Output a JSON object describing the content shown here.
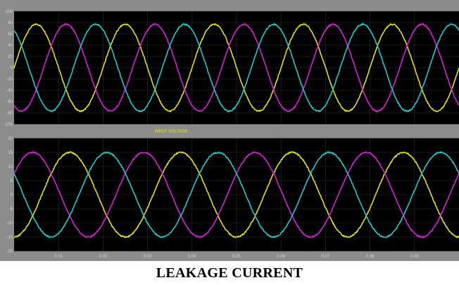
{
  "caption": "LEAKAGE CURRENT",
  "colors": {
    "frame": "#8c8c8c",
    "plot_bg": "#000000",
    "grid": "#2e2e2e",
    "tick_text": "#d8d8d8",
    "title_text": "#e8e800",
    "phase_a": "#e0e010",
    "phase_b": "#d020d0",
    "phase_c": "#20c8c8"
  },
  "chart_data": [
    {
      "type": "line",
      "title": "",
      "xlabel": "",
      "ylabel": "",
      "xlim": [
        0,
        0.1
      ],
      "ylim": [
        -100,
        100
      ],
      "yticks": [
        -100,
        -80,
        -60,
        -40,
        -20,
        0,
        20,
        40,
        60,
        80,
        100
      ],
      "grid": true,
      "series": [
        {
          "color": "#e0e010",
          "amplitude": 77,
          "frequency_hz": 50,
          "phase_deg": 0
        },
        {
          "color": "#d020d0",
          "amplitude": 77,
          "frequency_hz": 50,
          "phase_deg": -120
        },
        {
          "color": "#20c8c8",
          "amplitude": 77,
          "frequency_hz": 50,
          "phase_deg": 120
        }
      ]
    },
    {
      "type": "line",
      "title": "INPUT VOLTAGE",
      "xlabel": "",
      "ylabel": "",
      "xlim": [
        0.0,
        0.1
      ],
      "ylim": [
        -20,
        20
      ],
      "yticks": [
        -20,
        -15,
        -10,
        -5,
        0,
        5,
        10,
        15,
        20
      ],
      "xticks": [
        0.01,
        0.02,
        0.03,
        0.04,
        0.05,
        0.06,
        0.07,
        0.08,
        0.09
      ],
      "grid": true,
      "series": [
        {
          "color": "#e0e010",
          "amplitude": 15,
          "frequency_hz": 40,
          "phase_deg": -90
        },
        {
          "color": "#d020d0",
          "amplitude": 15,
          "frequency_hz": 40,
          "phase_deg": 30
        },
        {
          "color": "#20c8c8",
          "amplitude": 15,
          "frequency_hz": 40,
          "phase_deg": 150
        }
      ]
    }
  ]
}
